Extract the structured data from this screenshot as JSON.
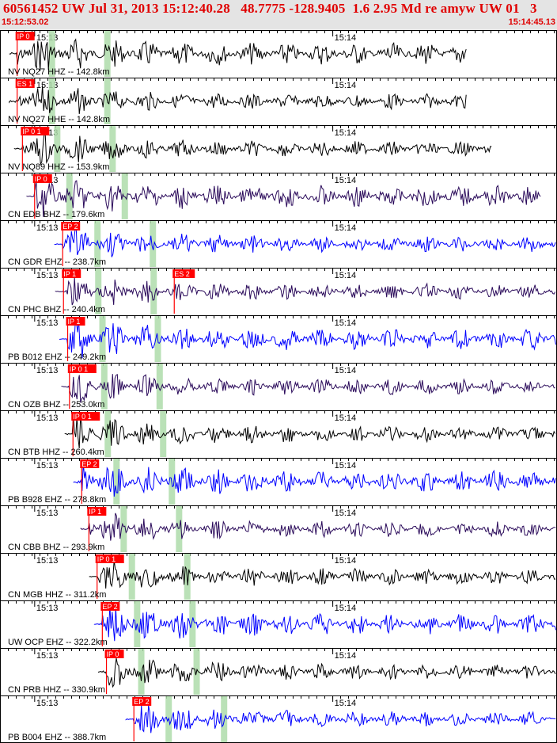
{
  "header": {
    "title": "60561452 UW Jul 31, 2013 15:12:40.28   48.7775 -128.9405  1.6 2.95 Md re amyw UW 01   3",
    "start_time": "15:12:53.02",
    "end_time": "15:14:45.13"
  },
  "colors": {
    "header_text": "#e00000",
    "header_bg": "#e4e4e4",
    "pick_marker": "#ff0000",
    "pick_window": "#aedcaa",
    "trace_black": "#000000",
    "trace_blue": "#0000ff",
    "trace_purple": "#2a0a5a"
  },
  "chart_data": {
    "type": "line",
    "xlabel": "",
    "ylabel": "",
    "x_range": [
      "15:12:53.02",
      "15:14:45.13"
    ],
    "time_ticks": [
      "15:13",
      "15:14"
    ],
    "traces": [
      {
        "label": "NV NQ27 HHZ -- 142.8km",
        "color": "black",
        "pick": "IP 0",
        "signal_end": "15:14:27"
      },
      {
        "label": "NV NQ27 HHE -- 142.8km",
        "color": "black",
        "pick": "ES 1",
        "signal_end": "15:14:27"
      },
      {
        "label": "NV NQ89 HHZ -- 153.9km",
        "color": "black",
        "pick": "IP 0 1",
        "signal_end": "15:14:32"
      },
      {
        "label": "CN EDB BHZ -- 179.6km",
        "color": "purple",
        "pick": "IP 0",
        "signal_end": "15:14:42"
      },
      {
        "label": "CN GDR EHZ -- 238.7km",
        "color": "blue",
        "pick": "EP 2",
        "signal_end": "15:14:45"
      },
      {
        "label": "CN PHC BHZ -- 240.4km",
        "color": "purple",
        "pick": "IP 1",
        "pick2": "ES 2",
        "signal_end": "15:14:45"
      },
      {
        "label": "PB B012 EHZ -- 249.2km",
        "color": "blue",
        "pick": "IP 1",
        "signal_end": "15:14:45"
      },
      {
        "label": "CN OZB BHZ -- 253.0km",
        "color": "purple",
        "pick": "IP 0 1",
        "signal_end": "15:14:45"
      },
      {
        "label": "CN BTB HHZ -- 260.4km",
        "color": "black",
        "pick": "IP 0 1",
        "signal_end": "15:14:45"
      },
      {
        "label": "PB B928 EHZ -- 278.8km",
        "color": "blue",
        "pick": "EP 2",
        "signal_end": "15:14:45"
      },
      {
        "label": "CN CBB BHZ -- 293.9km",
        "color": "purple",
        "pick": "IP 1",
        "signal_end": "15:14:45"
      },
      {
        "label": "CN MGB HHZ -- 311.2km",
        "color": "black",
        "pick": "IP 0 1",
        "signal_end": "15:14:45"
      },
      {
        "label": "UW OCP EHZ -- 322.2km",
        "color": "blue",
        "pick": "EP 2",
        "signal_end": "15:14:45"
      },
      {
        "label": "CN PRB HHZ -- 330.9km",
        "color": "black",
        "pick": "IP 0",
        "signal_end": "15:14:45"
      },
      {
        "label": "PB B004 EHZ -- 388.7km",
        "color": "blue",
        "pick": "EP 2",
        "signal_end": "15:14:45"
      }
    ]
  }
}
